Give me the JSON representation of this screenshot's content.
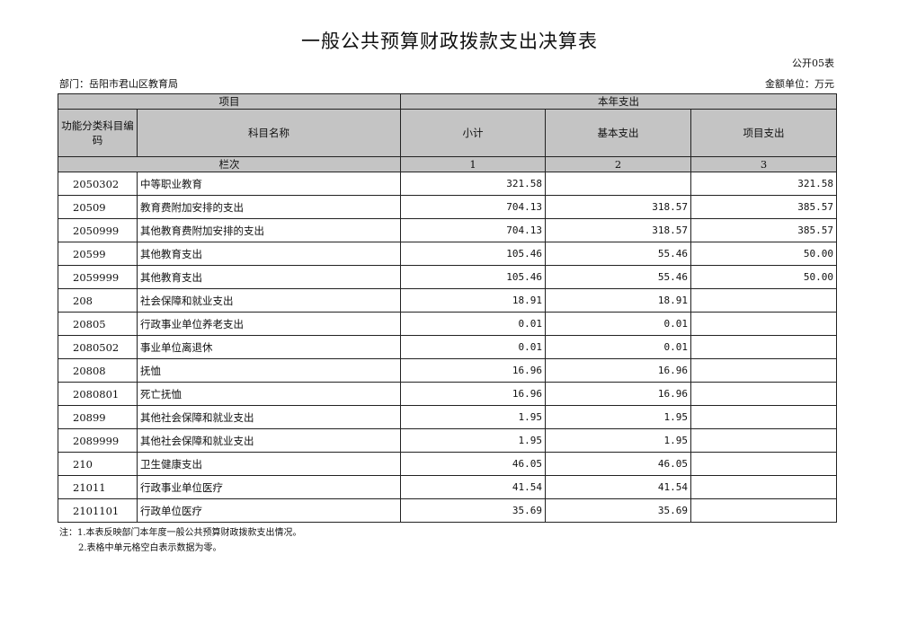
{
  "title": "一般公共预算财政拨款支出决算表",
  "sheet_no": "公开05表",
  "department": "部门：岳阳市君山区教育局",
  "unit": "金额单位：万元",
  "header": {
    "item": "项目",
    "current_year": "本年支出",
    "code": "功能分类科目编码",
    "name": "科目名称",
    "subtotal": "小计",
    "basic": "基本支出",
    "project": "项目支出",
    "column_order": "栏次",
    "col1": "1",
    "col2": "2",
    "col3": "3"
  },
  "rows": [
    {
      "code": "2050302",
      "name": "中等职业教育",
      "subtotal": "321.58",
      "basic": "",
      "project": "321.58"
    },
    {
      "code": "20509",
      "name": "教育费附加安排的支出",
      "subtotal": "704.13",
      "basic": "318.57",
      "project": "385.57"
    },
    {
      "code": "2050999",
      "name": "其他教育费附加安排的支出",
      "subtotal": "704.13",
      "basic": "318.57",
      "project": "385.57"
    },
    {
      "code": "20599",
      "name": "其他教育支出",
      "subtotal": "105.46",
      "basic": "55.46",
      "project": "50.00"
    },
    {
      "code": "2059999",
      "name": "其他教育支出",
      "subtotal": "105.46",
      "basic": "55.46",
      "project": "50.00"
    },
    {
      "code": "208",
      "name": "社会保障和就业支出",
      "subtotal": "18.91",
      "basic": "18.91",
      "project": ""
    },
    {
      "code": "20805",
      "name": "行政事业单位养老支出",
      "subtotal": "0.01",
      "basic": "0.01",
      "project": ""
    },
    {
      "code": "2080502",
      "name": "事业单位离退休",
      "subtotal": "0.01",
      "basic": "0.01",
      "project": ""
    },
    {
      "code": "20808",
      "name": "抚恤",
      "subtotal": "16.96",
      "basic": "16.96",
      "project": ""
    },
    {
      "code": "2080801",
      "name": "死亡抚恤",
      "subtotal": "16.96",
      "basic": "16.96",
      "project": ""
    },
    {
      "code": "20899",
      "name": "其他社会保障和就业支出",
      "subtotal": "1.95",
      "basic": "1.95",
      "project": ""
    },
    {
      "code": "2089999",
      "name": "其他社会保障和就业支出",
      "subtotal": "1.95",
      "basic": "1.95",
      "project": ""
    },
    {
      "code": "210",
      "name": "卫生健康支出",
      "subtotal": "46.05",
      "basic": "46.05",
      "project": ""
    },
    {
      "code": "21011",
      "name": "行政事业单位医疗",
      "subtotal": "41.54",
      "basic": "41.54",
      "project": ""
    },
    {
      "code": "2101101",
      "name": "行政单位医疗",
      "subtotal": "35.69",
      "basic": "35.69",
      "project": ""
    }
  ],
  "notes": [
    "注：1.本表反映部门本年度一般公共预算财政拨款支出情况。",
    "2.表格中单元格空白表示数据为零。"
  ]
}
